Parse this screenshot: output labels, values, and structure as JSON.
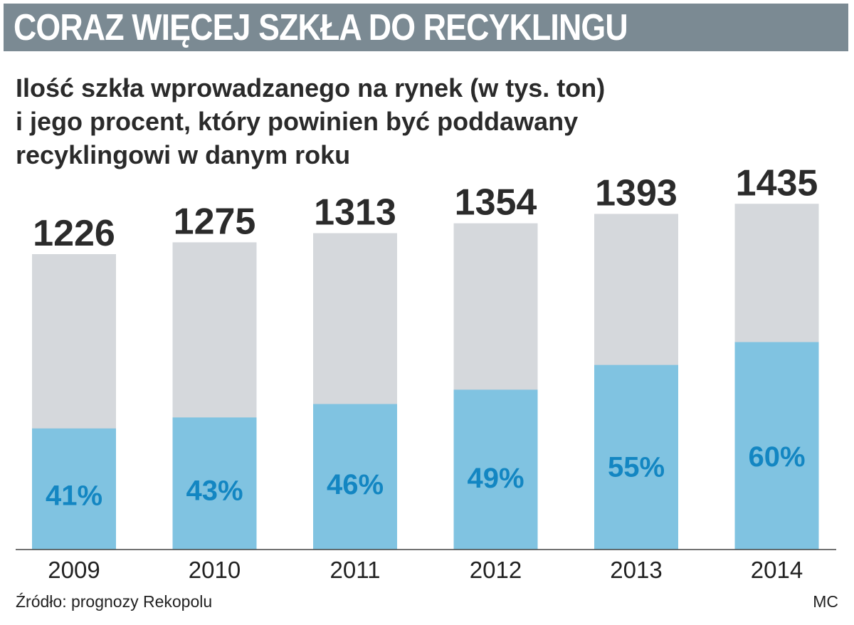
{
  "header": {
    "title": "CORAZ WIĘCEJ SZKŁA DO RECYKLINGU",
    "subtitle_lines": [
      "Ilość szkła wprowadzanego na rynek (w tys. ton)",
      "i jego procent, który powinien być poddawany",
      "recyklingowi w danym roku"
    ]
  },
  "footer": {
    "source": "Źródło: prognozy Rekopolu",
    "credit": "MC"
  },
  "colors": {
    "title_bar": "#7b8a93",
    "bar_total": "#d5d8dc",
    "bar_recycled": "#80c3e1",
    "percent_text": "#1386c2",
    "value_text": "#2b2b2b"
  },
  "chart_data": {
    "type": "bar",
    "stacked_overlay": true,
    "categories": [
      "2009",
      "2010",
      "2011",
      "2012",
      "2013",
      "2014"
    ],
    "series": [
      {
        "name": "",
        "values": [
          1226,
          1275,
          1313,
          1354,
          1393,
          1435
        ],
        "labels": [
          "1226",
          "1275",
          "1313",
          "1354",
          "1393",
          "1435"
        ]
      },
      {
        "name": "",
        "values": [
          41,
          43,
          46,
          49,
          55,
          60
        ],
        "labels": [
          "41%",
          "43%",
          "46%",
          "49%",
          "55%",
          "60%"
        ]
      }
    ],
    "title": "CORAZ WIĘCEJ SZKŁA DO RECYKLINGU",
    "xlabel": "",
    "ylabel": "",
    "grid": false
  }
}
